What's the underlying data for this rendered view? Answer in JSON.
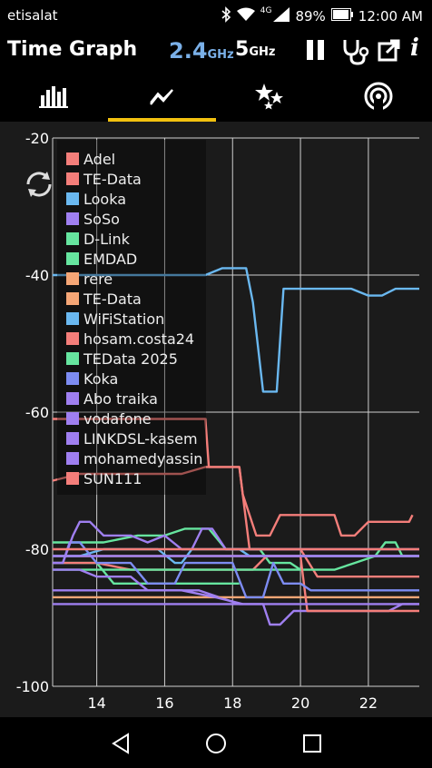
{
  "status_bar": {
    "carrier": "etisalat",
    "network": "4G",
    "battery": "89%",
    "time": "12:00 AM"
  },
  "app_bar": {
    "title": "Time Graph",
    "band_24": "2.4",
    "band_5": "5",
    "unit": "GHz"
  },
  "tabs": [
    {
      "icon": "bar-chart-icon",
      "active": false
    },
    {
      "icon": "time-graph-icon",
      "active": true
    },
    {
      "icon": "stars-icon",
      "active": false
    },
    {
      "icon": "radar-icon",
      "active": false
    }
  ],
  "chart_data": {
    "type": "line",
    "x_ticks": [
      "14",
      "16",
      "18",
      "20",
      "22"
    ],
    "y_ticks": [
      "-20",
      "-40",
      "-60",
      "-80",
      "-100"
    ],
    "xlim": [
      12.7,
      23.5
    ],
    "ylim": [
      -100,
      -20
    ],
    "series": [
      {
        "name": "Adel",
        "color": "#f47e7a",
        "points": [
          [
            12.7,
            -61
          ],
          [
            16.3,
            -61
          ],
          [
            17.2,
            -61
          ],
          [
            17.3,
            -68
          ],
          [
            18.2,
            -68
          ],
          [
            18.3,
            -72
          ],
          [
            18.7,
            -78
          ],
          [
            19.1,
            -78
          ],
          [
            19.4,
            -75
          ],
          [
            20.5,
            -75
          ],
          [
            21.0,
            -75
          ],
          [
            21.2,
            -78
          ],
          [
            21.6,
            -78
          ],
          [
            22.0,
            -76
          ],
          [
            22.6,
            -76
          ],
          [
            23.2,
            -76
          ],
          [
            23.3,
            -75
          ]
        ]
      },
      {
        "name": "TE-Data",
        "color": "#f47e7a",
        "points": [
          [
            12.7,
            -70
          ],
          [
            13.5,
            -69
          ],
          [
            14.5,
            -69
          ],
          [
            15.5,
            -69
          ],
          [
            16.5,
            -69
          ],
          [
            17.2,
            -68
          ],
          [
            18.2,
            -68
          ],
          [
            18.5,
            -80
          ],
          [
            20.0,
            -80
          ],
          [
            20.5,
            -84
          ],
          [
            21.5,
            -84
          ],
          [
            22.0,
            -84
          ],
          [
            23.5,
            -84
          ]
        ]
      },
      {
        "name": "Looka",
        "color": "#6ab8f0",
        "points": [
          [
            12.7,
            -40
          ],
          [
            16.5,
            -40
          ],
          [
            17.2,
            -40
          ],
          [
            17.7,
            -39
          ],
          [
            18.4,
            -39
          ],
          [
            18.6,
            -44
          ],
          [
            18.9,
            -57
          ],
          [
            19.3,
            -57
          ],
          [
            19.5,
            -42
          ],
          [
            20.0,
            -42
          ],
          [
            21.0,
            -42
          ],
          [
            21.5,
            -42
          ],
          [
            22.0,
            -43
          ],
          [
            22.4,
            -43
          ],
          [
            22.8,
            -42
          ],
          [
            23.5,
            -42
          ]
        ]
      },
      {
        "name": "SoSo",
        "color": "#9f7ff0",
        "points": [
          [
            12.7,
            -86
          ],
          [
            14.0,
            -86
          ],
          [
            15.5,
            -86
          ],
          [
            17.0,
            -86
          ],
          [
            18.2,
            -88
          ],
          [
            18.9,
            -88
          ],
          [
            19.1,
            -91
          ],
          [
            19.4,
            -91
          ],
          [
            19.8,
            -89
          ],
          [
            20.2,
            -89
          ],
          [
            22.0,
            -89
          ],
          [
            22.6,
            -89
          ],
          [
            23.0,
            -88
          ],
          [
            23.5,
            -88
          ]
        ]
      },
      {
        "name": "D-Link",
        "color": "#66e59f",
        "points": [
          [
            12.7,
            -79
          ],
          [
            14.2,
            -79
          ],
          [
            15.2,
            -78
          ],
          [
            16.0,
            -78
          ],
          [
            16.6,
            -77
          ],
          [
            17.3,
            -77
          ],
          [
            17.8,
            -80
          ],
          [
            18.8,
            -80
          ],
          [
            19.1,
            -82
          ],
          [
            19.7,
            -82
          ],
          [
            20.0,
            -83
          ],
          [
            21.0,
            -83
          ],
          [
            21.6,
            -82
          ],
          [
            22.2,
            -81
          ],
          [
            22.5,
            -79
          ],
          [
            22.8,
            -79
          ],
          [
            23.0,
            -81
          ],
          [
            23.5,
            -81
          ]
        ]
      },
      {
        "name": "EMDAD",
        "color": "#66e59f",
        "points": [
          [
            12.7,
            -82
          ],
          [
            13.5,
            -82
          ],
          [
            14.0,
            -82
          ],
          [
            14.5,
            -85
          ],
          [
            15.0,
            -85
          ],
          [
            16.0,
            -85
          ],
          [
            17.0,
            -85
          ],
          [
            18.2,
            -85
          ]
        ]
      },
      {
        "name": "rere",
        "color": "#f5a676",
        "points": [
          [
            12.7,
            -87
          ],
          [
            14.0,
            -87
          ],
          [
            15.5,
            -87
          ],
          [
            17.0,
            -87
          ],
          [
            18.5,
            -87
          ],
          [
            20.0,
            -87
          ],
          [
            21.5,
            -87
          ],
          [
            23.5,
            -87
          ]
        ]
      },
      {
        "name": "TE-Data",
        "color": "#f5a676",
        "points": [
          [
            12.7,
            -81
          ],
          [
            14.0,
            -81
          ],
          [
            15.5,
            -81
          ],
          [
            17.0,
            -81
          ],
          [
            18.5,
            -81
          ],
          [
            20.0,
            -81
          ],
          [
            21.5,
            -81
          ],
          [
            23.5,
            -81
          ]
        ]
      },
      {
        "name": "WiFiStation",
        "color": "#6ab8f0",
        "points": [
          [
            12.7,
            -81
          ],
          [
            13.5,
            -81
          ],
          [
            14.2,
            -80
          ],
          [
            15.0,
            -80
          ],
          [
            15.8,
            -80
          ],
          [
            16.3,
            -82
          ],
          [
            16.5,
            -82
          ],
          [
            16.8,
            -80
          ],
          [
            17.5,
            -80
          ],
          [
            18.2,
            -80
          ],
          [
            18.5,
            -81
          ],
          [
            19.5,
            -81
          ],
          [
            21.5,
            -81
          ],
          [
            23.5,
            -81
          ]
        ]
      },
      {
        "name": "hosam.costa24",
        "color": "#f47e7a",
        "points": [
          [
            12.7,
            -82
          ],
          [
            14.0,
            -82
          ],
          [
            15.0,
            -83
          ],
          [
            16.5,
            -83
          ],
          [
            18.0,
            -83
          ],
          [
            18.6,
            -83
          ],
          [
            19.0,
            -81
          ],
          [
            20.0,
            -81
          ],
          [
            20.2,
            -89
          ],
          [
            21.0,
            -89
          ],
          [
            22.0,
            -89
          ],
          [
            23.5,
            -89
          ]
        ]
      },
      {
        "name": "TEData 2025",
        "color": "#66e59f",
        "points": [
          [
            12.7,
            -83
          ],
          [
            14.5,
            -83
          ],
          [
            16.0,
            -83
          ],
          [
            17.5,
            -83
          ],
          [
            18.5,
            -83
          ],
          [
            20.0,
            -83
          ]
        ]
      },
      {
        "name": "Koka",
        "color": "#7d8cf2",
        "points": [
          [
            12.7,
            -82
          ],
          [
            13.0,
            -82
          ],
          [
            13.2,
            -79
          ],
          [
            13.5,
            -79
          ],
          [
            14.0,
            -82
          ],
          [
            15.0,
            -82
          ],
          [
            15.5,
            -85
          ],
          [
            16.3,
            -85
          ],
          [
            16.6,
            -82
          ],
          [
            17.0,
            -82
          ],
          [
            17.5,
            -82
          ],
          [
            18.0,
            -82
          ],
          [
            18.4,
            -87
          ],
          [
            18.9,
            -87
          ],
          [
            19.2,
            -82
          ],
          [
            19.5,
            -85
          ],
          [
            20.0,
            -85
          ],
          [
            20.3,
            -86
          ],
          [
            21.5,
            -86
          ],
          [
            23.5,
            -86
          ]
        ]
      },
      {
        "name": "Abo traika",
        "color": "#9f7ff0",
        "points": [
          [
            12.7,
            -83
          ],
          [
            13.5,
            -83
          ],
          [
            14.0,
            -84
          ],
          [
            14.5,
            -84
          ],
          [
            15.0,
            -84
          ],
          [
            15.5,
            -86
          ],
          [
            16.5,
            -86
          ],
          [
            17.5,
            -87
          ],
          [
            18.3,
            -88
          ]
        ]
      },
      {
        "name": "vodafone",
        "color": "#9f7ff0",
        "points": [
          [
            12.7,
            -82
          ],
          [
            13.0,
            -82
          ],
          [
            13.3,
            -78
          ],
          [
            13.5,
            -76
          ],
          [
            13.8,
            -76
          ],
          [
            14.2,
            -78
          ],
          [
            15.0,
            -78
          ],
          [
            15.5,
            -79
          ],
          [
            16.0,
            -78
          ],
          [
            16.5,
            -80
          ],
          [
            16.8,
            -80
          ],
          [
            17.1,
            -77
          ],
          [
            17.4,
            -77
          ],
          [
            17.8,
            -80
          ],
          [
            18.5,
            -80
          ],
          [
            19.5,
            -80
          ],
          [
            20.5,
            -80
          ],
          [
            21.5,
            -80
          ],
          [
            23.5,
            -80
          ]
        ]
      },
      {
        "name": "LINKDSL-kasem",
        "color": "#9f7ff0",
        "points": [
          [
            12.7,
            -88
          ],
          [
            14.0,
            -88
          ],
          [
            16.0,
            -88
          ],
          [
            17.5,
            -88
          ],
          [
            18.5,
            -88
          ],
          [
            19.0,
            -88
          ],
          [
            20.0,
            -88
          ],
          [
            21.5,
            -88
          ],
          [
            23.5,
            -88
          ]
        ]
      },
      {
        "name": "mohamedyassin",
        "color": "#9f7ff0",
        "points": [
          [
            12.7,
            -81
          ],
          [
            14.0,
            -81
          ],
          [
            15.5,
            -81
          ],
          [
            17.0,
            -81
          ],
          [
            18.5,
            -81
          ],
          [
            20.0,
            -81
          ],
          [
            21.5,
            -81
          ],
          [
            23.5,
            -81
          ]
        ]
      },
      {
        "name": "SUN111",
        "color": "#f47e7a",
        "points": [
          [
            12.7,
            -80
          ],
          [
            14.0,
            -80
          ],
          [
            15.5,
            -80
          ],
          [
            17.0,
            -80
          ],
          [
            18.5,
            -80
          ],
          [
            20.0,
            -80
          ],
          [
            21.5,
            -80
          ],
          [
            23.5,
            -80
          ]
        ]
      }
    ]
  }
}
